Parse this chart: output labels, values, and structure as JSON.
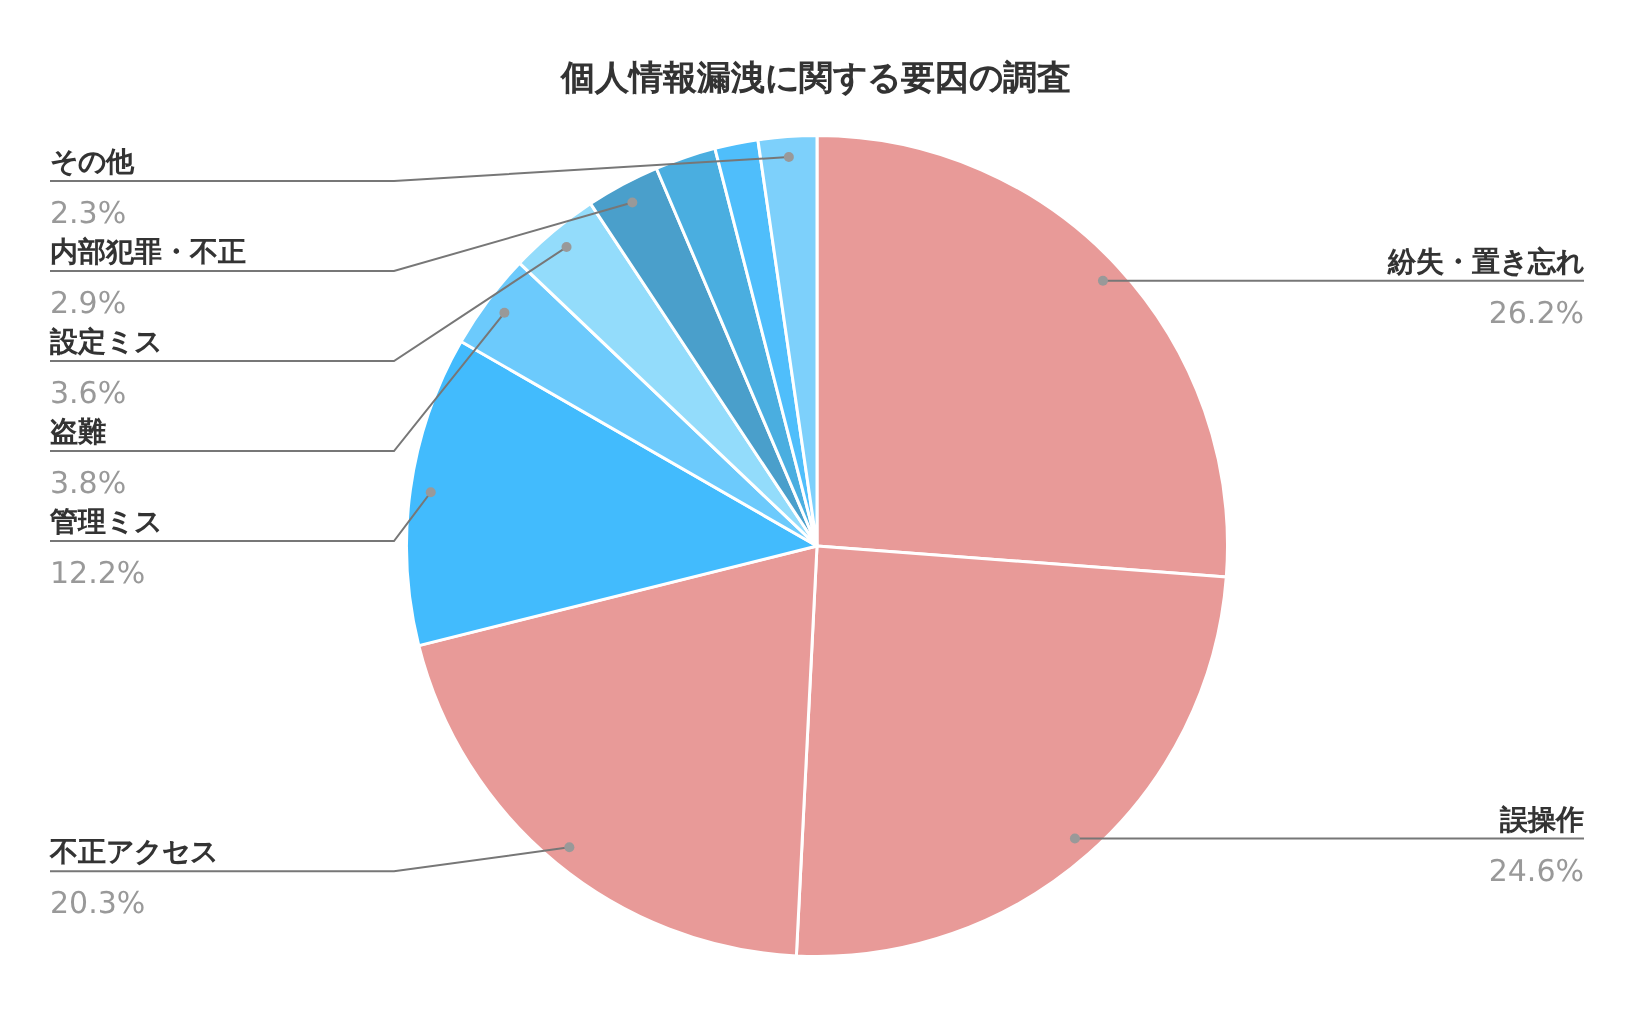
{
  "chart_data": {
    "type": "pie",
    "title": "個人情報漏洩に関する要因の調査",
    "categories": [
      "紛失・置き忘れ",
      "誤操作",
      "不正アクセス",
      "管理ミス",
      "盗難",
      "設定ミス",
      "内部犯罪・不正",
      null,
      null,
      "その他"
    ],
    "values": [
      26.2,
      24.6,
      20.3,
      12.2,
      3.8,
      3.6,
      2.9,
      2.4,
      1.7,
      2.3
    ],
    "value_labels": [
      "26.2%",
      "24.6%",
      "20.3%",
      "12.2%",
      "3.8%",
      "3.6%",
      "2.9%",
      null,
      null,
      "2.3%"
    ],
    "colors": [
      "#e89a98",
      "#e89a98",
      "#e89a98",
      "#42bbfd",
      "#6ccafc",
      "#93dcfb",
      "#4a9fcb",
      "#4aaee0",
      "#4fbefb",
      "#7dd0fb"
    ]
  }
}
